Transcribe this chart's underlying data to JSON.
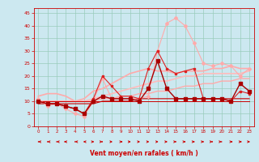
{
  "x": [
    0,
    1,
    2,
    3,
    4,
    5,
    6,
    7,
    8,
    9,
    10,
    11,
    12,
    13,
    14,
    15,
    16,
    17,
    18,
    19,
    20,
    21,
    22,
    23
  ],
  "background_color": "#cce8f0",
  "grid_color": "#99ccbb",
  "xlabel": "Vent moyen/en rafales ( km/h )",
  "xlabel_color": "#cc0000",
  "tick_color": "#cc0000",
  "ylim": [
    0,
    47
  ],
  "yticks": [
    0,
    5,
    10,
    15,
    20,
    25,
    30,
    35,
    40,
    45
  ],
  "series": [
    {
      "y": [
        11,
        8,
        9,
        7,
        5,
        4,
        10,
        19,
        11,
        11,
        11,
        11,
        12,
        30,
        41,
        43,
        40,
        33,
        25,
        24,
        25,
        24,
        20,
        23
      ],
      "color": "#ffaaaa",
      "lw": 0.8,
      "marker": "D",
      "ms": 2.0,
      "zorder": 3
    },
    {
      "y": [
        12,
        13,
        13,
        12,
        10,
        11,
        14,
        15,
        17,
        19,
        21,
        22,
        23,
        22,
        22,
        21,
        22,
        22,
        22,
        23,
        23,
        24,
        23,
        23
      ],
      "color": "#ffaaaa",
      "lw": 1.2,
      "marker": null,
      "ms": 0,
      "zorder": 2
    },
    {
      "y": [
        10,
        10,
        10,
        10,
        10,
        10,
        11,
        12,
        13,
        14,
        15,
        16,
        17,
        18,
        18,
        19,
        20,
        20,
        21,
        21,
        21,
        21,
        21,
        22
      ],
      "color": "#ffbbbb",
      "lw": 1.2,
      "marker": null,
      "ms": 0,
      "zorder": 2
    },
    {
      "y": [
        10,
        10,
        10,
        10,
        10,
        10,
        10,
        11,
        11,
        12,
        12,
        13,
        13,
        14,
        14,
        15,
        16,
        16,
        17,
        17,
        18,
        18,
        19,
        19
      ],
      "color": "#ffaaaa",
      "lw": 1.0,
      "marker": null,
      "ms": 0,
      "zorder": 2
    },
    {
      "y": [
        10,
        9,
        9,
        8,
        7,
        5,
        11,
        20,
        16,
        12,
        12,
        11,
        23,
        30,
        23,
        21,
        22,
        23,
        11,
        11,
        11,
        10,
        14,
        13
      ],
      "color": "#dd2222",
      "lw": 0.8,
      "marker": "s",
      "ms": 2.0,
      "zorder": 4
    },
    {
      "y": [
        10,
        9,
        9,
        8,
        7,
        5,
        10,
        12,
        11,
        11,
        11,
        10,
        15,
        26,
        15,
        11,
        11,
        11,
        11,
        11,
        11,
        10,
        17,
        14
      ],
      "color": "#aa0000",
      "lw": 1.0,
      "marker": "s",
      "ms": 2.5,
      "zorder": 5
    },
    {
      "y": [
        9,
        9,
        9,
        9,
        9,
        9,
        9,
        10,
        10,
        10,
        10,
        11,
        11,
        11,
        11,
        11,
        11,
        11,
        11,
        11,
        11,
        11,
        11,
        11
      ],
      "color": "#cc0000",
      "lw": 0.8,
      "marker": null,
      "ms": 0,
      "zorder": 2
    },
    {
      "y": [
        10,
        10,
        10,
        10,
        10,
        10,
        10,
        10,
        10,
        10,
        10,
        10,
        10,
        10,
        10,
        10,
        10,
        10,
        10,
        10,
        10,
        10,
        10,
        10
      ],
      "color": "#cc0000",
      "lw": 0.7,
      "marker": null,
      "ms": 0,
      "zorder": 2
    }
  ],
  "arrow_angles": [
    225,
    225,
    225,
    210,
    225,
    195,
    165,
    135,
    90,
    150,
    105,
    90,
    90,
    90,
    75,
    60,
    60,
    60,
    60,
    45,
    45,
    30,
    30,
    15
  ]
}
